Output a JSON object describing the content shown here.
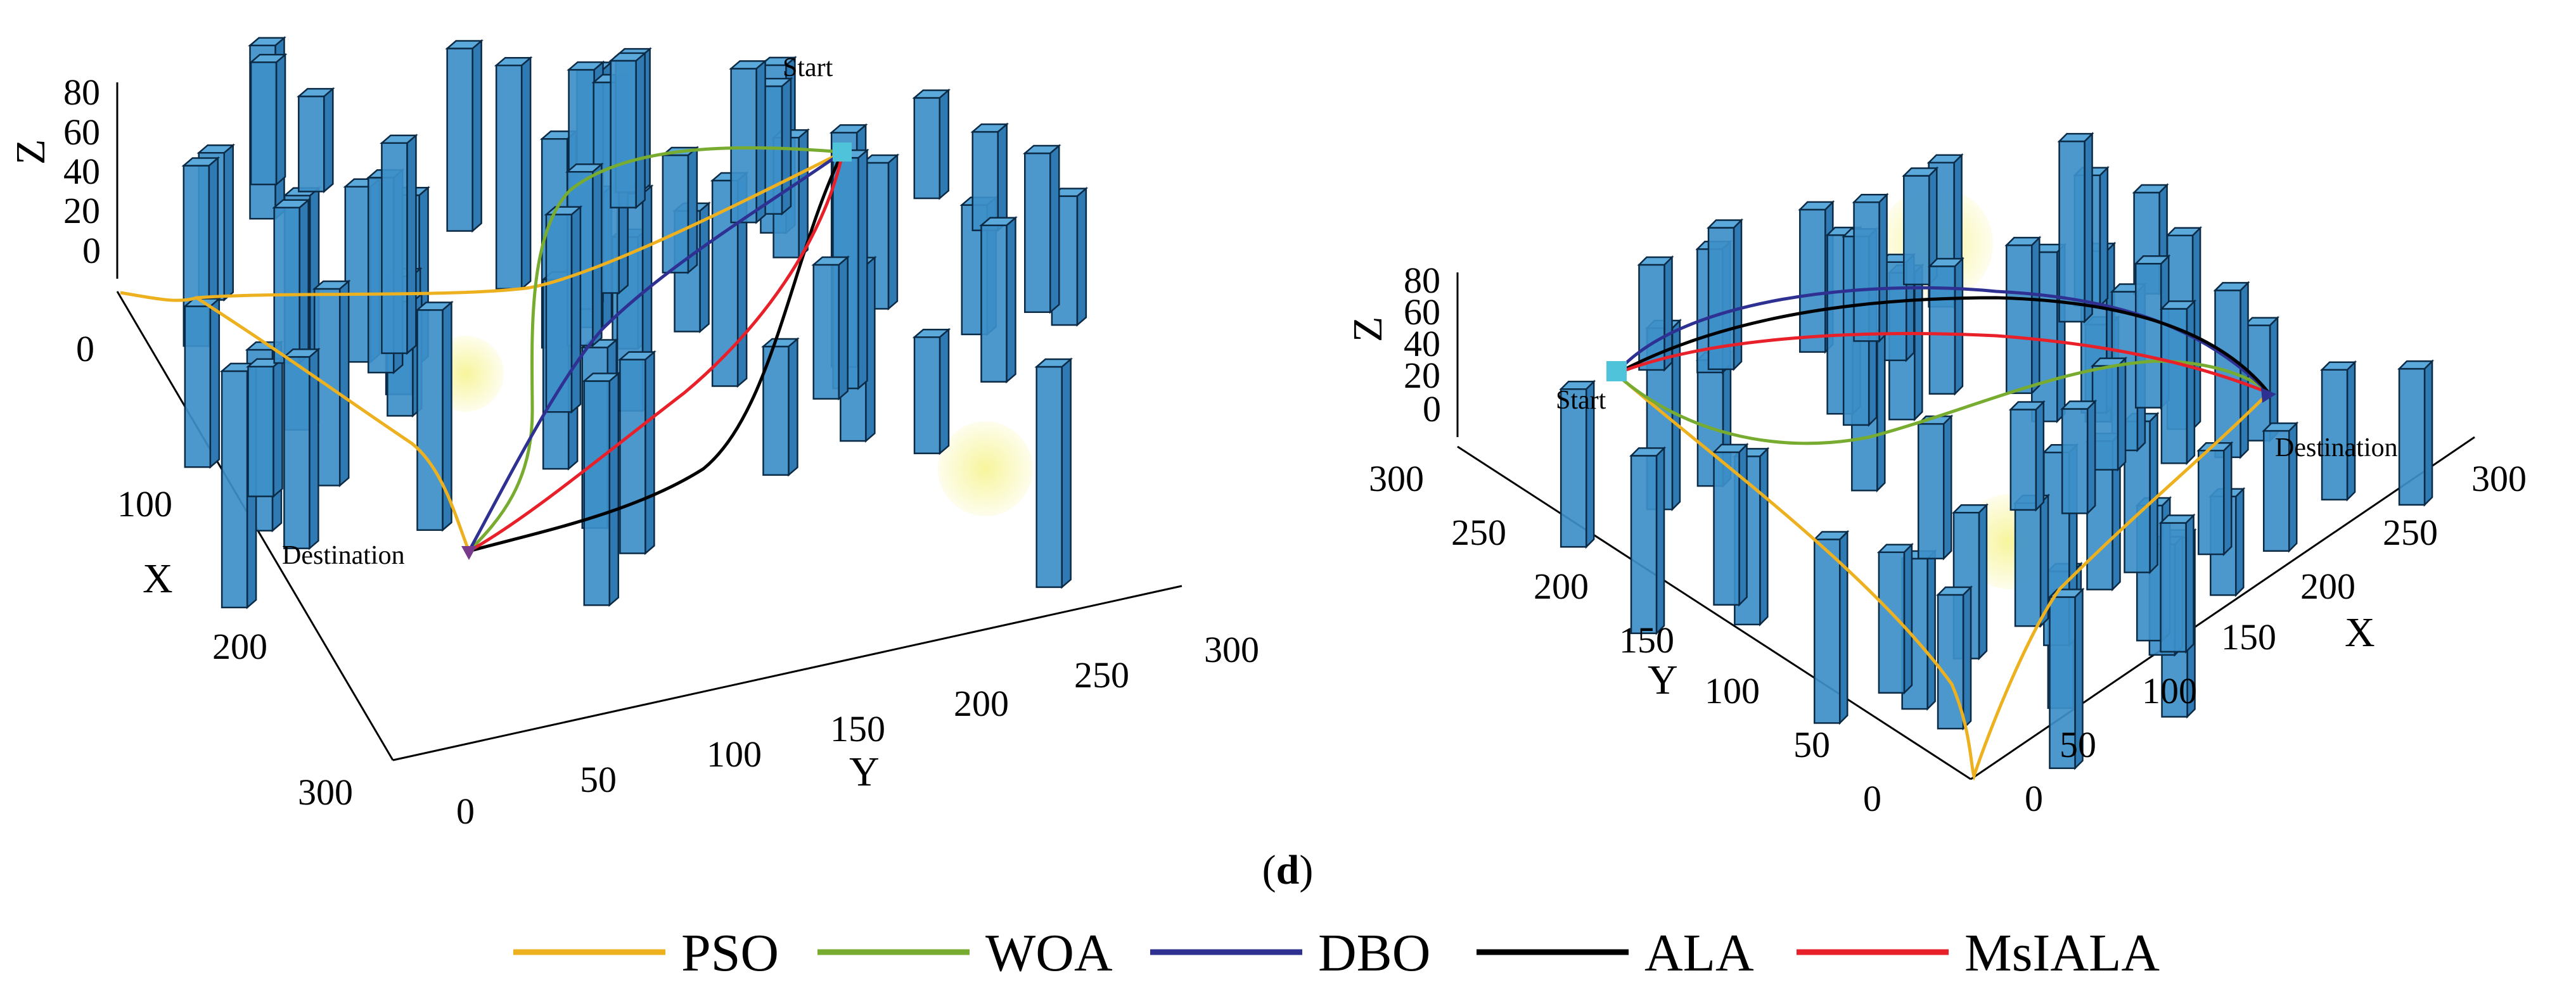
{
  "chart_data": [
    {
      "type": "3d-line",
      "panel": "left",
      "xlabel": "X",
      "ylabel": "Y",
      "zlabel": "Z",
      "x_ticks": [
        "0",
        "100",
        "200",
        "300"
      ],
      "y_ticks": [
        "0",
        "50",
        "100",
        "150",
        "200",
        "250",
        "300"
      ],
      "z_ticks": [
        "0",
        "20",
        "40",
        "60",
        "80"
      ],
      "xlim": [
        0,
        300
      ],
      "ylim": [
        0,
        300
      ],
      "zlim": [
        0,
        80
      ],
      "start": {
        "label": "Start",
        "x": 0,
        "y": 290,
        "z": 60
      },
      "destination": {
        "label": "Destination",
        "x": 280,
        "y": 10,
        "z": 20
      },
      "obstacle_count": 58,
      "threat_zones": 3
    },
    {
      "type": "3d-line",
      "panel": "right",
      "xlabel": "X",
      "ylabel": "Y",
      "zlabel": "Z",
      "x_ticks": [
        "0",
        "50",
        "100",
        "150",
        "200",
        "250",
        "300"
      ],
      "y_ticks": [
        "0",
        "50",
        "100",
        "150",
        "200",
        "250",
        "300"
      ],
      "z_ticks": [
        "0",
        "20",
        "40",
        "60",
        "80"
      ],
      "xlim": [
        0,
        300
      ],
      "ylim": [
        0,
        300
      ],
      "zlim": [
        0,
        80
      ],
      "start": {
        "label": "Start",
        "x": 0,
        "y": 290,
        "z": 30
      },
      "destination": {
        "label": "Destination",
        "x": 290,
        "y": 0,
        "z": 20
      },
      "obstacle_count": 56,
      "threat_zones": 2
    }
  ],
  "caption": {
    "open": "(",
    "letter": "d",
    "close": ")"
  },
  "legend": [
    {
      "name": "PSO",
      "color": "#EDB120"
    },
    {
      "name": "WOA",
      "color": "#77AC30"
    },
    {
      "name": "DBO",
      "color": "#2E3192"
    },
    {
      "name": "ALA",
      "color": "#000000"
    },
    {
      "name": "MsIALA",
      "color": "#E8202A"
    }
  ],
  "colors": {
    "obstacle_face": "#3D8FC9",
    "obstacle_top": "#5BA8DA",
    "obstacle_edge": "#0B2A45",
    "start_marker": "#4FC3D9",
    "dest_marker": "#7A3A8C",
    "threat": "#F3F07A"
  }
}
